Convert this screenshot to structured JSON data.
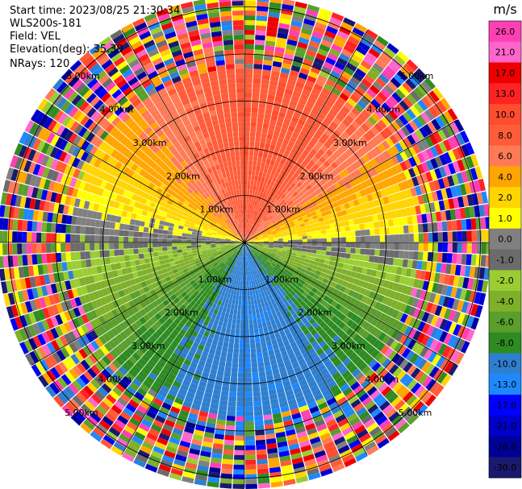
{
  "info": {
    "start_time": "Start time: 2023/08/25 21:30:34",
    "instrument": "WLS200s-181",
    "field": "Field: VEL",
    "elevation": "Elevation(deg): 35.30",
    "nrays": "NRays: 120"
  },
  "chart_data": {
    "type": "heatmap",
    "projection": "polar-ppi",
    "field": "VEL",
    "nrays": 120,
    "range_rings_km": [
      1,
      2,
      3,
      4,
      5
    ],
    "range_ring_labels": [
      "1.00km",
      "2.00km",
      "3.00km",
      "4.00km",
      "5.00km"
    ],
    "max_range_km": 5.2,
    "valid_range_km": 3.6,
    "colorbar": {
      "unit": "m/s",
      "ticks": [
        "26.0",
        "21.0",
        "17.0",
        "13.0",
        "10.0",
        "8.0",
        "6.0",
        "4.0",
        "2.0",
        "1.0",
        "0.0",
        "-1.0",
        "-2.0",
        "-4.0",
        "-6.0",
        "-8.0",
        "-10.0",
        "-13.0",
        "-17.0",
        "-21.0",
        "-26.0",
        "-30.0"
      ],
      "bins": [
        {
          "min": 26,
          "max": 30,
          "color": "#ff3fb4"
        },
        {
          "min": 21,
          "max": 26,
          "color": "#ff66cc"
        },
        {
          "min": 17,
          "max": 21,
          "color": "#ee0000"
        },
        {
          "min": 13,
          "max": 17,
          "color": "#ff2222"
        },
        {
          "min": 10,
          "max": 13,
          "color": "#ff4d2e"
        },
        {
          "min": 8,
          "max": 10,
          "color": "#ff5c3a"
        },
        {
          "min": 6,
          "max": 8,
          "color": "#ff7a55"
        },
        {
          "min": 4,
          "max": 6,
          "color": "#ffa500"
        },
        {
          "min": 2,
          "max": 4,
          "color": "#ffd400"
        },
        {
          "min": 1,
          "max": 2,
          "color": "#ffff00"
        },
        {
          "min": 0,
          "max": 1,
          "color": "#808080"
        },
        {
          "min": -1,
          "max": 0,
          "color": "#6b6b6b"
        },
        {
          "min": -2,
          "max": -1,
          "color": "#9acd32"
        },
        {
          "min": -4,
          "max": -2,
          "color": "#7fb02a"
        },
        {
          "min": -6,
          "max": -4,
          "color": "#5a9e2c"
        },
        {
          "min": -8,
          "max": -6,
          "color": "#2e8b22"
        },
        {
          "min": -10,
          "max": -8,
          "color": "#2f7fd0"
        },
        {
          "min": -13,
          "max": -10,
          "color": "#1e88ff"
        },
        {
          "min": -17,
          "max": -13,
          "color": "#0000ff"
        },
        {
          "min": -21,
          "max": -17,
          "color": "#0000cc"
        },
        {
          "min": -26,
          "max": -21,
          "color": "#000099"
        },
        {
          "min": -30,
          "max": -26,
          "color": "#191970"
        }
      ]
    }
  }
}
